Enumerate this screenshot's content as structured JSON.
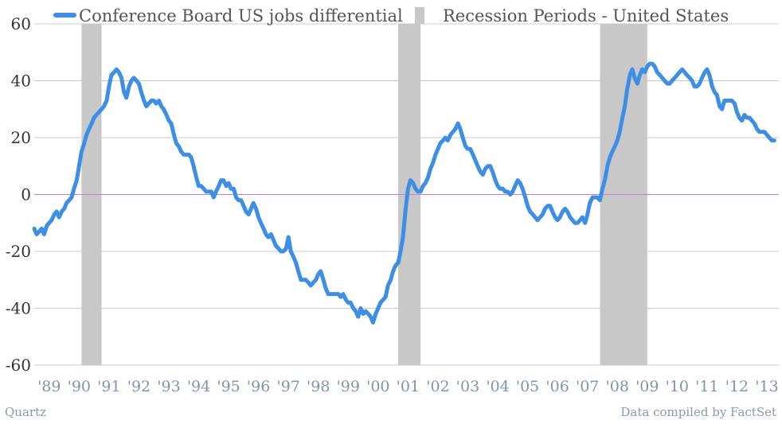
{
  "footer": {
    "left": "Quartz",
    "right": "Data compiled by FactSet"
  },
  "chart_data": {
    "type": "line",
    "ylim": [
      -60,
      60
    ],
    "yticks": [
      "60",
      "40",
      "20",
      "0",
      "-20",
      "-40",
      "-60"
    ],
    "xlim": [
      1989.0,
      2013.9
    ],
    "xticks": [
      "'89",
      "'90",
      "'91",
      "'92",
      "'93",
      "'94",
      "'95",
      "'96",
      "'97",
      "'98",
      "'99",
      "'00",
      "'01",
      "'02",
      "'03",
      "'04",
      "'05",
      "'06",
      "'07",
      "'08",
      "'09",
      "'10",
      "'11",
      "'12",
      "'13"
    ],
    "grid": true,
    "legend_position": "top-left",
    "colors": {
      "line": "#3d8ee6",
      "recession": "#c8c8c8",
      "zero_line": "#cc77dd",
      "grid": "#cccccc"
    },
    "series": [
      {
        "name": "Conference Board US jobs differential",
        "points": [
          [
            1989.0,
            -12
          ],
          [
            1989.08,
            -14
          ],
          [
            1989.17,
            -13
          ],
          [
            1989.25,
            -12
          ],
          [
            1989.33,
            -14
          ],
          [
            1989.42,
            -11
          ],
          [
            1989.5,
            -10
          ],
          [
            1989.58,
            -9
          ],
          [
            1989.67,
            -7
          ],
          [
            1989.75,
            -6
          ],
          [
            1989.83,
            -8
          ],
          [
            1989.92,
            -6
          ],
          [
            1990.0,
            -5
          ],
          [
            1990.08,
            -3
          ],
          [
            1990.17,
            -2
          ],
          [
            1990.25,
            -1
          ],
          [
            1990.33,
            2
          ],
          [
            1990.42,
            5
          ],
          [
            1990.5,
            10
          ],
          [
            1990.58,
            15
          ],
          [
            1990.67,
            18
          ],
          [
            1990.75,
            21
          ],
          [
            1990.83,
            23
          ],
          [
            1990.92,
            25
          ],
          [
            1991.0,
            27
          ],
          [
            1991.08,
            28
          ],
          [
            1991.17,
            29
          ],
          [
            1991.25,
            30
          ],
          [
            1991.33,
            31
          ],
          [
            1991.42,
            33
          ],
          [
            1991.5,
            38
          ],
          [
            1991.58,
            42
          ],
          [
            1991.67,
            43
          ],
          [
            1991.75,
            44
          ],
          [
            1991.83,
            43
          ],
          [
            1991.92,
            41
          ],
          [
            1992.0,
            36
          ],
          [
            1992.08,
            34
          ],
          [
            1992.17,
            38
          ],
          [
            1992.25,
            40
          ],
          [
            1992.33,
            41
          ],
          [
            1992.42,
            40
          ],
          [
            1992.5,
            39
          ],
          [
            1992.58,
            36
          ],
          [
            1992.67,
            33
          ],
          [
            1992.75,
            31
          ],
          [
            1992.83,
            32
          ],
          [
            1992.92,
            33
          ],
          [
            1993.0,
            33
          ],
          [
            1993.08,
            32
          ],
          [
            1993.17,
            33
          ],
          [
            1993.25,
            31
          ],
          [
            1993.33,
            30
          ],
          [
            1993.42,
            28
          ],
          [
            1993.5,
            26
          ],
          [
            1993.58,
            25
          ],
          [
            1993.67,
            21
          ],
          [
            1993.75,
            18
          ],
          [
            1993.83,
            17
          ],
          [
            1993.92,
            15
          ],
          [
            1994.0,
            14
          ],
          [
            1994.08,
            14
          ],
          [
            1994.17,
            14
          ],
          [
            1994.25,
            13
          ],
          [
            1994.33,
            10
          ],
          [
            1994.42,
            6
          ],
          [
            1994.5,
            3
          ],
          [
            1994.58,
            3
          ],
          [
            1994.67,
            2
          ],
          [
            1994.75,
            1
          ],
          [
            1994.83,
            1
          ],
          [
            1994.92,
            1
          ],
          [
            1995.0,
            -1
          ],
          [
            1995.08,
            1
          ],
          [
            1995.17,
            3
          ],
          [
            1995.25,
            5
          ],
          [
            1995.33,
            5
          ],
          [
            1995.42,
            3
          ],
          [
            1995.5,
            4
          ],
          [
            1995.58,
            2
          ],
          [
            1995.67,
            2
          ],
          [
            1995.75,
            -1
          ],
          [
            1995.83,
            -2
          ],
          [
            1995.92,
            -2
          ],
          [
            1996.0,
            -4
          ],
          [
            1996.08,
            -6
          ],
          [
            1996.17,
            -7
          ],
          [
            1996.25,
            -5
          ],
          [
            1996.33,
            -3
          ],
          [
            1996.42,
            -5
          ],
          [
            1996.5,
            -8
          ],
          [
            1996.58,
            -10
          ],
          [
            1996.67,
            -12
          ],
          [
            1996.75,
            -14
          ],
          [
            1996.83,
            -15
          ],
          [
            1996.92,
            -14
          ],
          [
            1997.0,
            -16
          ],
          [
            1997.08,
            -18
          ],
          [
            1997.17,
            -19
          ],
          [
            1997.25,
            -20
          ],
          [
            1997.33,
            -20
          ],
          [
            1997.42,
            -19
          ],
          [
            1997.5,
            -15
          ],
          [
            1997.58,
            -20
          ],
          [
            1997.67,
            -22
          ],
          [
            1997.75,
            -24
          ],
          [
            1997.83,
            -27
          ],
          [
            1997.92,
            -30
          ],
          [
            1998.0,
            -30
          ],
          [
            1998.08,
            -30
          ],
          [
            1998.17,
            -31
          ],
          [
            1998.25,
            -32
          ],
          [
            1998.33,
            -31
          ],
          [
            1998.42,
            -30
          ],
          [
            1998.5,
            -28
          ],
          [
            1998.58,
            -27
          ],
          [
            1998.67,
            -30
          ],
          [
            1998.75,
            -33
          ],
          [
            1998.83,
            -35
          ],
          [
            1998.92,
            -35
          ],
          [
            1999.0,
            -35
          ],
          [
            1999.08,
            -35
          ],
          [
            1999.17,
            -35
          ],
          [
            1999.25,
            -36
          ],
          [
            1999.33,
            -35
          ],
          [
            1999.42,
            -37
          ],
          [
            1999.5,
            -38
          ],
          [
            1999.58,
            -38
          ],
          [
            1999.67,
            -40
          ],
          [
            1999.75,
            -41
          ],
          [
            1999.83,
            -43
          ],
          [
            1999.92,
            -40
          ],
          [
            2000.0,
            -42
          ],
          [
            2000.08,
            -41
          ],
          [
            2000.17,
            -42
          ],
          [
            2000.25,
            -43
          ],
          [
            2000.33,
            -45
          ],
          [
            2000.42,
            -42
          ],
          [
            2000.5,
            -40
          ],
          [
            2000.58,
            -38
          ],
          [
            2000.67,
            -37
          ],
          [
            2000.75,
            -36
          ],
          [
            2000.83,
            -32
          ],
          [
            2000.92,
            -30
          ],
          [
            2001.0,
            -27
          ],
          [
            2001.08,
            -25
          ],
          [
            2001.17,
            -24
          ],
          [
            2001.25,
            -20
          ],
          [
            2001.33,
            -15
          ],
          [
            2001.42,
            -5
          ],
          [
            2001.5,
            2
          ],
          [
            2001.58,
            5
          ],
          [
            2001.67,
            4
          ],
          [
            2001.75,
            2
          ],
          [
            2001.83,
            1
          ],
          [
            2001.92,
            1
          ],
          [
            2002.0,
            3
          ],
          [
            2002.08,
            4
          ],
          [
            2002.17,
            6
          ],
          [
            2002.25,
            9
          ],
          [
            2002.33,
            11
          ],
          [
            2002.42,
            14
          ],
          [
            2002.5,
            16
          ],
          [
            2002.58,
            18
          ],
          [
            2002.67,
            19
          ],
          [
            2002.75,
            20
          ],
          [
            2002.83,
            19
          ],
          [
            2002.92,
            21
          ],
          [
            2003.0,
            22
          ],
          [
            2003.08,
            23
          ],
          [
            2003.17,
            25
          ],
          [
            2003.25,
            23
          ],
          [
            2003.33,
            20
          ],
          [
            2003.42,
            17
          ],
          [
            2003.5,
            16
          ],
          [
            2003.58,
            16
          ],
          [
            2003.67,
            14
          ],
          [
            2003.75,
            12
          ],
          [
            2003.83,
            10
          ],
          [
            2003.92,
            8
          ],
          [
            2004.0,
            7
          ],
          [
            2004.08,
            9
          ],
          [
            2004.17,
            10
          ],
          [
            2004.25,
            10
          ],
          [
            2004.33,
            8
          ],
          [
            2004.42,
            5
          ],
          [
            2004.5,
            3
          ],
          [
            2004.58,
            2
          ],
          [
            2004.67,
            2
          ],
          [
            2004.75,
            1
          ],
          [
            2004.83,
            1
          ],
          [
            2004.92,
            0
          ],
          [
            2005.0,
            1
          ],
          [
            2005.08,
            3
          ],
          [
            2005.17,
            5
          ],
          [
            2005.25,
            4
          ],
          [
            2005.33,
            2
          ],
          [
            2005.42,
            -1
          ],
          [
            2005.5,
            -4
          ],
          [
            2005.58,
            -6
          ],
          [
            2005.67,
            -7
          ],
          [
            2005.75,
            -8
          ],
          [
            2005.83,
            -9
          ],
          [
            2005.92,
            -8
          ],
          [
            2006.0,
            -7
          ],
          [
            2006.08,
            -5
          ],
          [
            2006.17,
            -4
          ],
          [
            2006.25,
            -4
          ],
          [
            2006.33,
            -6
          ],
          [
            2006.42,
            -8
          ],
          [
            2006.5,
            -9
          ],
          [
            2006.58,
            -8
          ],
          [
            2006.67,
            -6
          ],
          [
            2006.75,
            -5
          ],
          [
            2006.83,
            -6
          ],
          [
            2006.92,
            -8
          ],
          [
            2007.0,
            -9
          ],
          [
            2007.08,
            -10
          ],
          [
            2007.17,
            -10
          ],
          [
            2007.25,
            -9
          ],
          [
            2007.33,
            -8
          ],
          [
            2007.42,
            -10
          ],
          [
            2007.5,
            -7
          ],
          [
            2007.58,
            -3
          ],
          [
            2007.67,
            -1
          ],
          [
            2007.75,
            -1
          ],
          [
            2007.83,
            -1
          ],
          [
            2007.92,
            -2
          ],
          [
            2008.0,
            2
          ],
          [
            2008.08,
            5
          ],
          [
            2008.17,
            10
          ],
          [
            2008.25,
            13
          ],
          [
            2008.33,
            15
          ],
          [
            2008.42,
            17
          ],
          [
            2008.5,
            19
          ],
          [
            2008.58,
            22
          ],
          [
            2008.67,
            27
          ],
          [
            2008.75,
            31
          ],
          [
            2008.83,
            37
          ],
          [
            2008.92,
            42
          ],
          [
            2009.0,
            44
          ],
          [
            2009.08,
            41
          ],
          [
            2009.17,
            39
          ],
          [
            2009.25,
            42
          ],
          [
            2009.33,
            44
          ],
          [
            2009.42,
            43
          ],
          [
            2009.5,
            45
          ],
          [
            2009.58,
            46
          ],
          [
            2009.67,
            46
          ],
          [
            2009.75,
            45
          ],
          [
            2009.83,
            43
          ],
          [
            2009.92,
            42
          ],
          [
            2010.0,
            41
          ],
          [
            2010.08,
            40
          ],
          [
            2010.17,
            39
          ],
          [
            2010.25,
            39
          ],
          [
            2010.33,
            40
          ],
          [
            2010.42,
            41
          ],
          [
            2010.5,
            42
          ],
          [
            2010.58,
            43
          ],
          [
            2010.67,
            44
          ],
          [
            2010.75,
            43
          ],
          [
            2010.83,
            42
          ],
          [
            2010.92,
            41
          ],
          [
            2011.0,
            40
          ],
          [
            2011.08,
            38
          ],
          [
            2011.17,
            38
          ],
          [
            2011.25,
            39
          ],
          [
            2011.33,
            41
          ],
          [
            2011.42,
            43
          ],
          [
            2011.5,
            44
          ],
          [
            2011.58,
            42
          ],
          [
            2011.67,
            38
          ],
          [
            2011.75,
            36
          ],
          [
            2011.83,
            35
          ],
          [
            2011.92,
            31
          ],
          [
            2012.0,
            30
          ],
          [
            2012.08,
            33
          ],
          [
            2012.17,
            33
          ],
          [
            2012.25,
            33
          ],
          [
            2012.33,
            33
          ],
          [
            2012.42,
            32
          ],
          [
            2012.5,
            29
          ],
          [
            2012.58,
            27
          ],
          [
            2012.67,
            26
          ],
          [
            2012.75,
            28
          ],
          [
            2012.83,
            27
          ],
          [
            2012.92,
            27
          ],
          [
            2013.0,
            26
          ],
          [
            2013.08,
            25
          ],
          [
            2013.17,
            23
          ],
          [
            2013.25,
            22
          ],
          [
            2013.33,
            22
          ],
          [
            2013.42,
            22
          ],
          [
            2013.5,
            21
          ],
          [
            2013.58,
            20
          ],
          [
            2013.67,
            19
          ],
          [
            2013.75,
            19
          ]
        ]
      },
      {
        "name": "Recession Periods - United States",
        "periods": [
          [
            1990.58,
            1991.25
          ],
          [
            2001.17,
            2001.92
          ],
          [
            2007.92,
            2009.5
          ]
        ]
      }
    ]
  }
}
